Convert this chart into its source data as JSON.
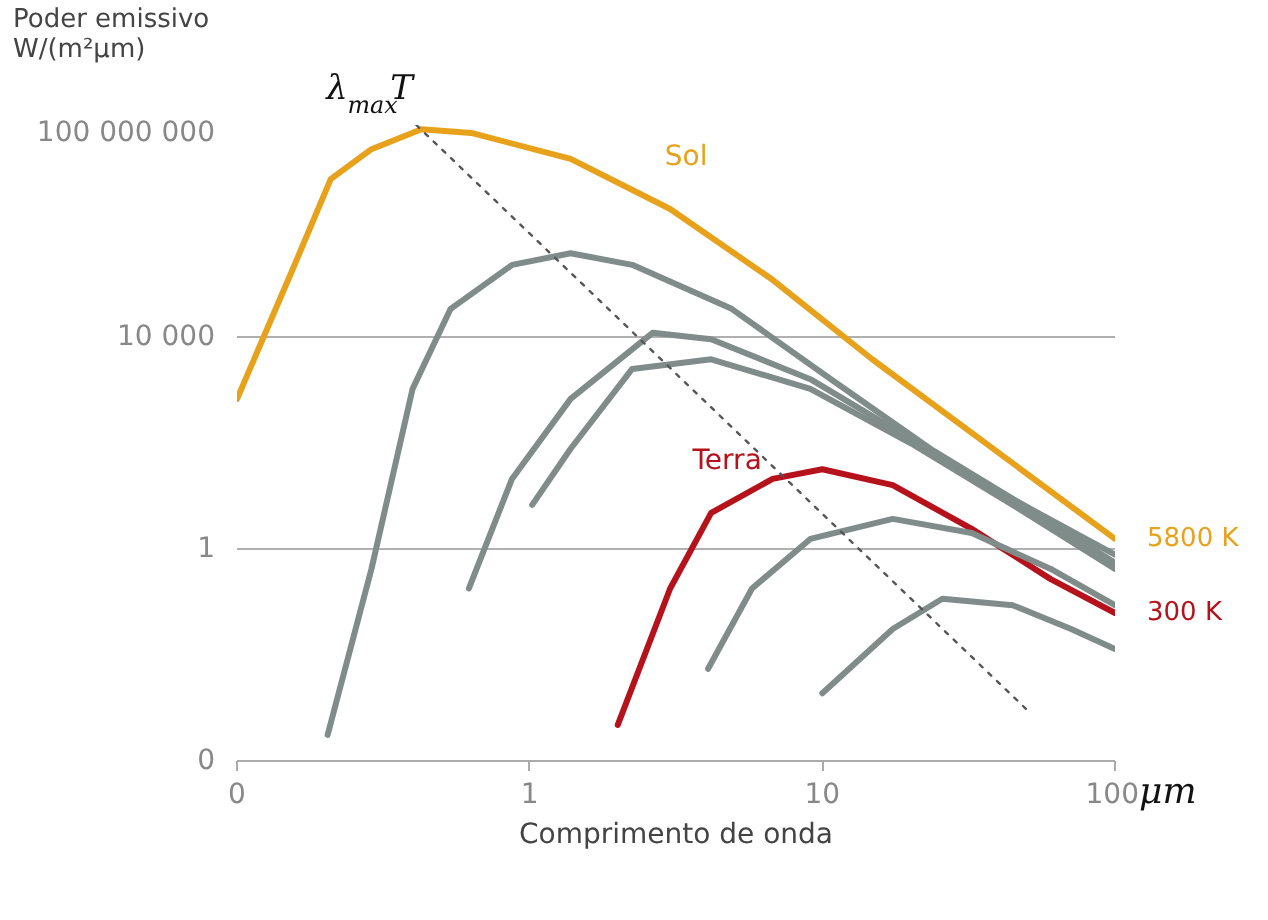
{
  "chart_data": {
    "type": "line",
    "xlabel": "Comprimento de onda",
    "ylabel": "Poder emissivo\nW/(m²μm)",
    "log": "xy",
    "grid": "y",
    "marker": "none",
    "line_style": "solid",
    "xlim": [
      0.1,
      100
    ],
    "ylim": [
      0.0001,
      100000000
    ],
    "xticks": [
      {
        "value": 0.1,
        "label": "0"
      },
      1,
      10,
      100
    ],
    "yticks": [
      {
        "value": 0.0001,
        "label": "0"
      },
      1,
      {
        "value": 10000,
        "label": "10 000"
      },
      {
        "value": 100000000,
        "label": "100 000 000"
      }
    ],
    "annotations": [
      "μm",
      {
        "text": "Sol",
        "x": 3.02,
        "y": 2600000
      },
      {
        "text": "Terra",
        "x": 4.17,
        "y": 4.8
      }
    ],
    "series": [
      {
        "name": "5800 K",
        "color": "#e8a11a",
        "x": [
          0.1,
          0.155,
          0.209,
          0.288,
          0.427,
          0.631,
          1.38,
          3.02,
          6.76,
          14.8,
          32.4,
          100
        ],
        "values": [
          676,
          190000,
          9500000,
          35000000,
          83000000,
          71000000,
          23000000,
          2600000,
          120000,
          3800,
          155,
          1.55
        ]
      },
      {
        "color": "#7f8c8a",
        "x": [
          0.204,
          0.288,
          0.398,
          0.537,
          0.871,
          1.38,
          2.24,
          4.9,
          10.7,
          23.4,
          51.3,
          100
        ],
        "values": [
          0.00031,
          0.42,
          1050,
          34000,
          230000,
          380000,
          230000,
          34000,
          1600,
          78,
          5.6,
          0.55
        ]
      },
      {
        "color": "#7f8c8a",
        "x": [
          0.62,
          0.87,
          1.38,
          2.63,
          4.17,
          9.1,
          20,
          44.7,
          100
        ],
        "values": [
          0.18,
          21,
          680,
          12000,
          9100,
          1600,
          120,
          8.7,
          0.78
        ]
      },
      {
        "color": "#7f8c8a",
        "x": [
          1.02,
          1.38,
          2.24,
          4.17,
          9.1,
          20,
          44.7,
          100
        ],
        "values": [
          6.8,
          78,
          2500,
          3800,
          1050,
          100,
          6.8,
          0.42
        ]
      },
      {
        "name": "300 K",
        "color": "#b5121b",
        "x": [
          2.0,
          3.02,
          4.17,
          6.76,
          10,
          17.4,
          32.4,
          60.3,
          100
        ],
        "values": [
          0.00048,
          0.18,
          4.8,
          21,
          32,
          16,
          2.4,
          0.27,
          0.062
        ]
      },
      {
        "color": "#7f8c8a",
        "x": [
          4.07,
          5.75,
          9.1,
          17.4,
          32.4,
          60.3,
          100
        ],
        "values": [
          0.0055,
          0.18,
          1.55,
          3.7,
          2.0,
          0.42,
          0.087
        ]
      },
      {
        "color": "#7f8c8a",
        "x": [
          10,
          17.4,
          25.7,
          44.7,
          70.8,
          100
        ],
        "values": [
          0.0019,
          0.031,
          0.115,
          0.087,
          0.031,
          0.013
        ]
      },
      {
        "name": "λ$_{max}$T",
        "color": "#555555",
        "line_style": "dotted",
        "x": [
          0.41,
          51.3
        ],
        "values": [
          100000000,
          0.00081
        ]
      }
    ]
  }
}
